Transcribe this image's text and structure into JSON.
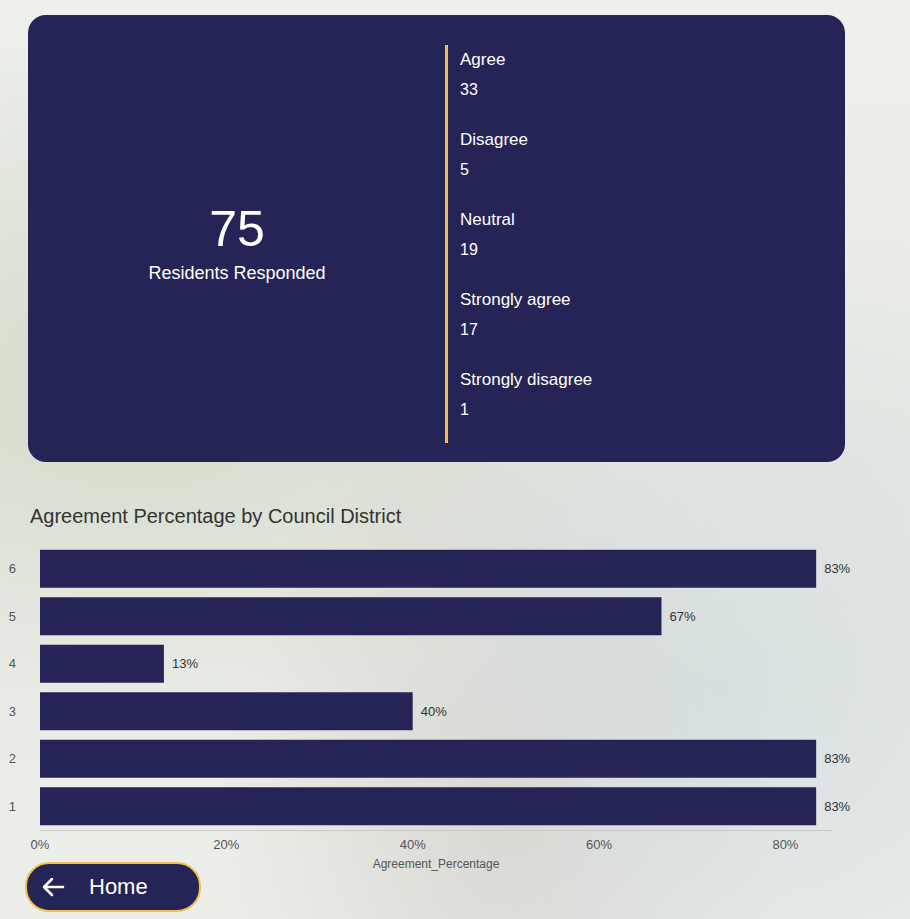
{
  "card": {
    "total": 75,
    "total_label": "Residents Responded",
    "breakdown": [
      {
        "label": "Agree",
        "count": 33
      },
      {
        "label": "Disagree",
        "count": 5
      },
      {
        "label": "Neutral",
        "count": 19
      },
      {
        "label": "Strongly agree",
        "count": 17
      },
      {
        "label": "Strongly disagree",
        "count": 1
      }
    ]
  },
  "button": {
    "label": "Home"
  },
  "chart_data": {
    "type": "bar",
    "title": "Agreement Percentage by Council District",
    "orientation": "horizontal",
    "categories": [
      "1",
      "2",
      "3",
      "4",
      "5",
      "6"
    ],
    "values": [
      83.3,
      83.3,
      40,
      13.3,
      66.7,
      83.3
    ],
    "value_labels": [
      "83%",
      "83%",
      "40%",
      "13%",
      "67%",
      "83%"
    ],
    "color": "#252457",
    "x_label": "Agreement_Percentage",
    "xlim": [
      0,
      85
    ],
    "xticks": [
      {
        "value": 0,
        "label": "0%"
      },
      {
        "value": 20,
        "label": "20%"
      },
      {
        "value": 40,
        "label": "40%"
      },
      {
        "value": 60,
        "label": "60%"
      },
      {
        "value": 80,
        "label": "80%"
      }
    ],
    "grid": false,
    "data_labels": true
  }
}
